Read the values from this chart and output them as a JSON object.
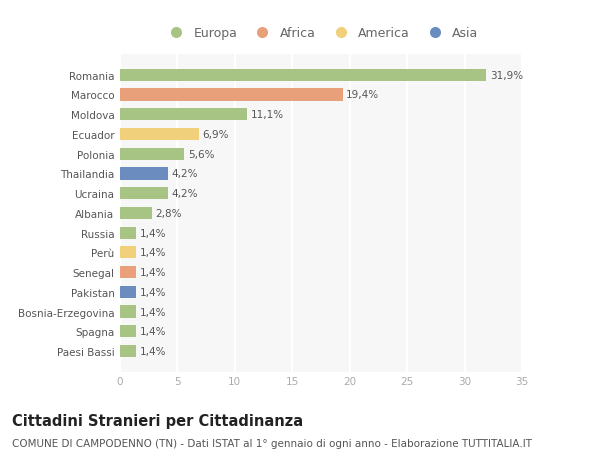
{
  "countries": [
    "Romania",
    "Marocco",
    "Moldova",
    "Ecuador",
    "Polonia",
    "Thailandia",
    "Ucraina",
    "Albania",
    "Russia",
    "Perù",
    "Senegal",
    "Pakistan",
    "Bosnia-Erzegovina",
    "Spagna",
    "Paesi Bassi"
  ],
  "values": [
    31.9,
    19.4,
    11.1,
    6.9,
    5.6,
    4.2,
    4.2,
    2.8,
    1.4,
    1.4,
    1.4,
    1.4,
    1.4,
    1.4,
    1.4
  ],
  "labels": [
    "31,9%",
    "19,4%",
    "11,1%",
    "6,9%",
    "5,6%",
    "4,2%",
    "4,2%",
    "2,8%",
    "1,4%",
    "1,4%",
    "1,4%",
    "1,4%",
    "1,4%",
    "1,4%",
    "1,4%"
  ],
  "continents": [
    "Europa",
    "Africa",
    "Europa",
    "America",
    "Europa",
    "Asia",
    "Europa",
    "Europa",
    "Europa",
    "America",
    "Africa",
    "Asia",
    "Europa",
    "Europa",
    "Europa"
  ],
  "colors": {
    "Europa": "#a8c484",
    "Africa": "#e8a07a",
    "America": "#f0d07a",
    "Asia": "#6b8cbf"
  },
  "legend_order": [
    "Europa",
    "Africa",
    "America",
    "Asia"
  ],
  "title": "Cittadini Stranieri per Cittadinanza",
  "subtitle": "COMUNE DI CAMPODENNO (TN) - Dati ISTAT al 1° gennaio di ogni anno - Elaborazione TUTTITALIA.IT",
  "xlim": [
    0,
    35
  ],
  "xticks": [
    0,
    5,
    10,
    15,
    20,
    25,
    30,
    35
  ],
  "bg_color": "#ffffff",
  "plot_bg_color": "#f7f7f7",
  "grid_color": "#ffffff",
  "bar_height": 0.62,
  "title_fontsize": 10.5,
  "subtitle_fontsize": 7.5,
  "label_fontsize": 7.5,
  "tick_fontsize": 7.5,
  "legend_fontsize": 9
}
